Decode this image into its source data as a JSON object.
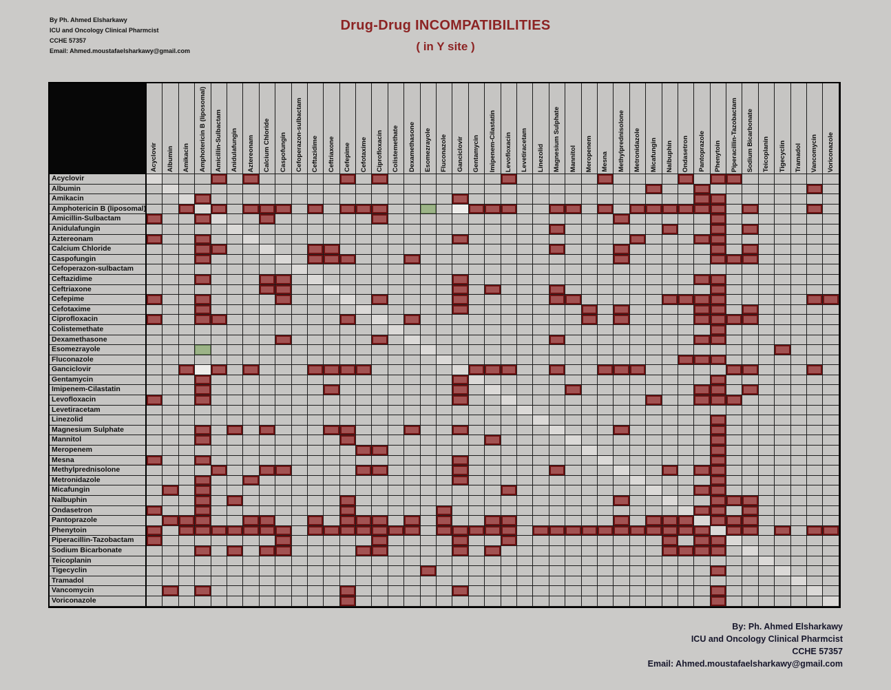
{
  "title": {
    "line1": "Drug-Drug INCOMPATIBILITIES",
    "line2": "( in Y site )"
  },
  "credits_top": {
    "0": "By Ph. Ahmed Elsharkawy",
    "1": "ICU and Oncology Clinical Pharmcist",
    "2": "CCHE 57357",
    "3": "Email: Ahmed.moustafaelsharkawy@gmail.com"
  },
  "credits_bottom": {
    "0": "By: Ph.  Ahmed Elsharkawy",
    "1": "ICU and Oncology Clinical Pharmcist",
    "2": "CCHE 57357",
    "3": "Email: Ahmed.moustafaelsharkawy@gmail.com"
  },
  "chart_data": {
    "type": "heatmap",
    "title": "Drug-Drug INCOMPATIBILITIES ( in Y site )",
    "drugs": [
      "Acyclovir",
      "Albumin",
      "Amikacin",
      "Amphotericin B (liposomal)",
      "Amicillin-Sulbactam",
      "Anidulafungin",
      "Aztereonam",
      "Calcium Chloride",
      "Caspofungin",
      "Cefoperazon-sulbactam",
      "Ceftazidime",
      "Ceftriaxone",
      "Cefepime",
      "Cefotaxime",
      "Ciprofloxacin",
      "Colistemethate",
      "Dexamethasone",
      "Esomezrayole",
      "Fluconazole",
      "Ganciclovir",
      "Gentamycin",
      "Imipenem-Cilastatin",
      "Levofloxacin",
      "Levetiracetam",
      "Linezolid",
      "Magnesium Sulphate",
      "Mannitol",
      "Meropenem",
      "Mesna",
      "Methylprednisolone",
      "Metronidazole",
      "Micafungin",
      "Nalbuphin",
      "Ondasetron",
      "Pantoprazole",
      "Phenytoin",
      "Piperacillin-Tazobactam",
      "Sodium Bicarbonate",
      "Teicoplanin",
      "Tigecyclin",
      "Tramadol",
      "Vancomycin",
      "Voriconazole"
    ],
    "cell_codes": {
      ".": "compatible / blank (gray)",
      "R": "incompatible (red)",
      "S": "same drug diagonal (light)",
      "G": "green cell",
      "W": "white cell"
    },
    "matrix": [
      "S...R.R.....R.R.......R.....R....R.RR......",
      ".S.............................R..R......R.",
      "..SR...............R..............RR.......",
      "..RSR.RRR.R.RRR..G.WRRR..RR.R.RRRRRR.R...R.",
      "R..RS..R......R..............R.....R.......",
      ".....S...................R......R..R.R.....",
      "R..R..S............R..........R...RR.......",
      "...RR..S..RR.............R...R.....R.R.....",
      "...R....S.RRR...R............R.....RRR.....",
      ".........S.................................",
      "...R...RR.S........R..............RR.......",
      ".......RR..S.......R.R...R.........R.......",
      "R..R....R...S.R....R.....RR.....RRRR.....RR",
      "...R.........S.....R.......R.R....RR.R.....",
      "R..RR.......R.S.R..........R.R....RRRR.....",
      "...............S...................R.......",
      "........R.....R.S........R........RR.......",
      "...G.............S.....................R...",
      "..................S..............RRR.......",
      "..RWR.R...RRRR.....SRRR..R..RRR.....RR...R.",
      "...R...............RS..............R.......",
      "...R.......R.......R.S....R.......RR.R.....",
      "R..R...............R..S........R..RRR......",
      ".......................S...................",
      "........................S..........R.......",
      "...R.R.R...RR...R..R.....S...R.....R.......",
      "...R........R........R....S........R.......",
      ".............RR............S.......R.......",
      "R..R...............R........S......R.......",
      "....R..RR....RR....R.....R...S..R.RR.......",
      "...R..R............R..........S....R.......",
      ".R.R..................R........S..RR.......",
      "...R.R......R................R..S..RRR.....",
      "R..R........R.....R..............SRR.R.....",
      ".RRR..RR..R.RRR.R.R..RR......R.RRRSRRR.....",
      "R.RRRRRRR.RRRRRRR.RRRRR.RRRRRRRRRRRSRR.R.RR",
      "R.......R.....R....R..R.........R.RRS......",
      "...R.R.RR....RR....R.R..........RRRR.S.....",
      "......................................S....",
      ".................R.................R...S...",
      "........................................S..",
      ".R.R........R......R...............R.....S.",
      "............R......................R......S"
    ]
  }
}
